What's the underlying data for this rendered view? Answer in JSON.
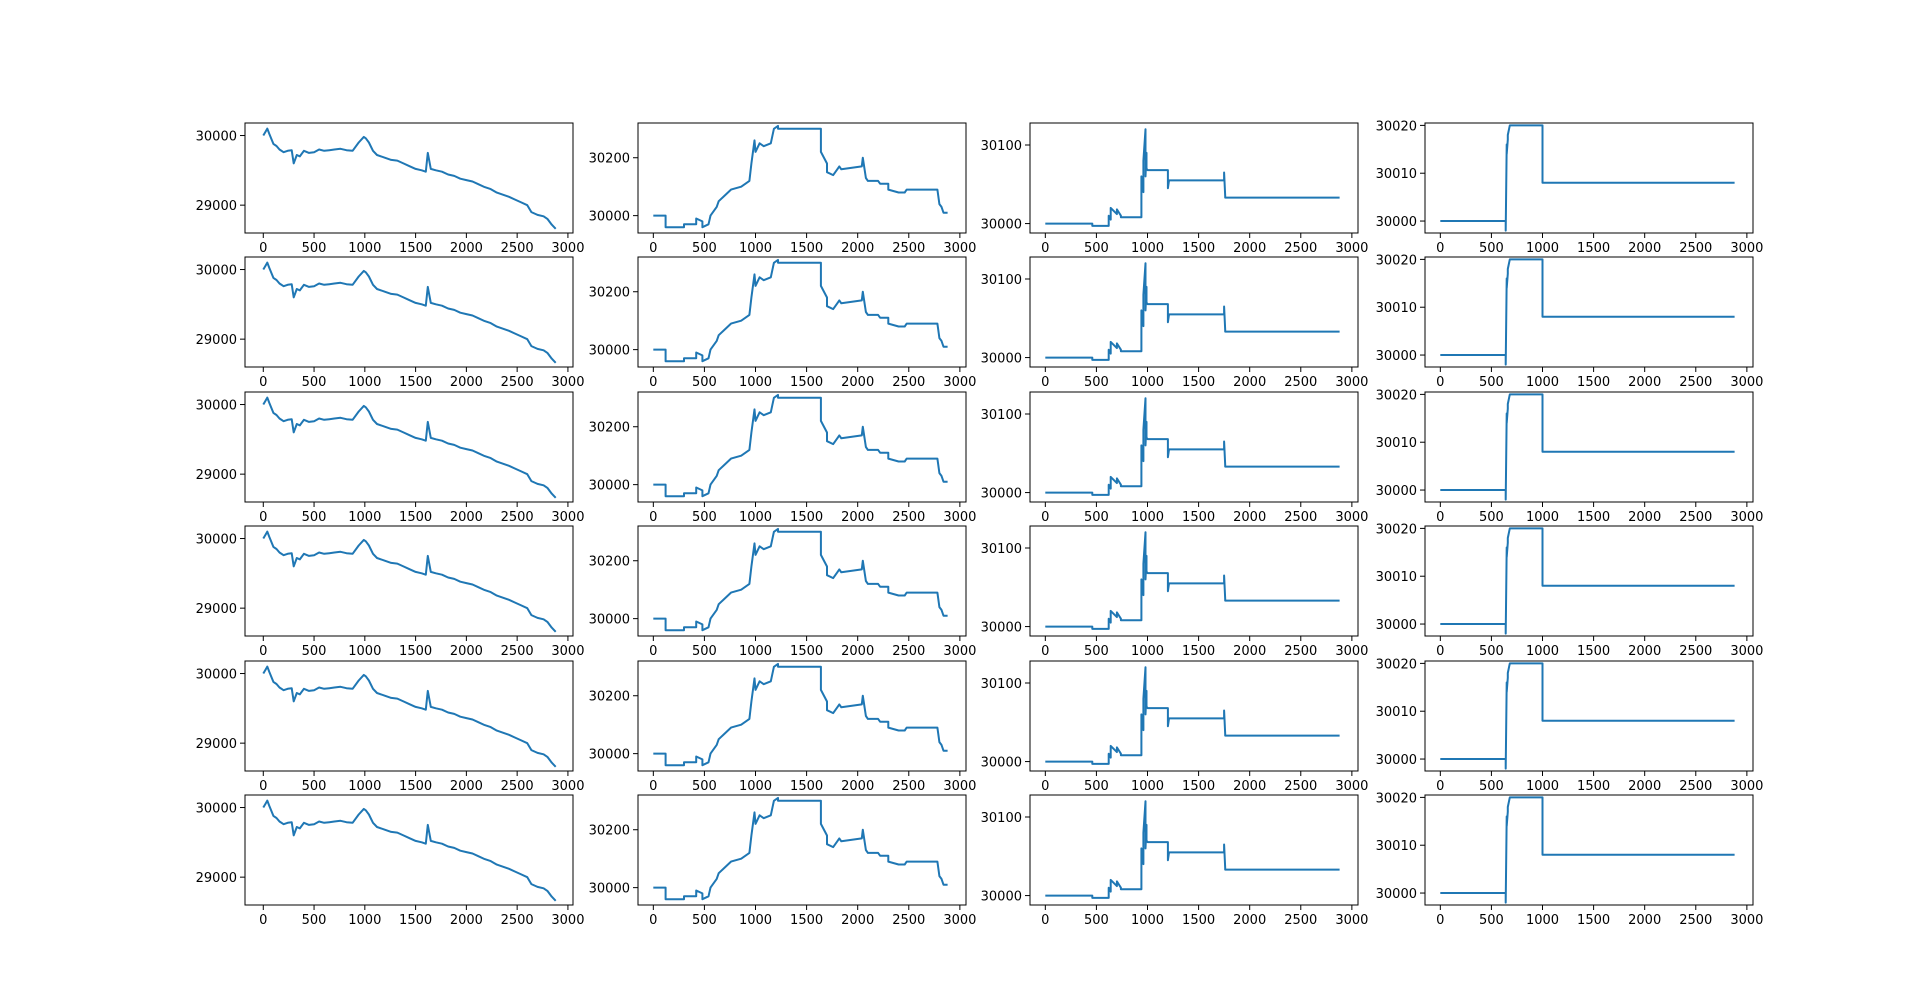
{
  "figure": {
    "rows": 6,
    "cols": 4,
    "line_color": "#1f77b4",
    "background": "#ffffff",
    "grid": false,
    "legend": false
  },
  "chart_data": [
    {
      "type": "line",
      "column": 1,
      "repeated_rows": 6,
      "xlim": [
        -180,
        3050
      ],
      "ylim": [
        28600,
        30180
      ],
      "xticks": [
        0,
        500,
        1000,
        1500,
        2000,
        2500,
        3000
      ],
      "yticks": [
        29000,
        30000
      ],
      "x": [
        0,
        20,
        40,
        60,
        80,
        100,
        130,
        160,
        200,
        240,
        280,
        300,
        330,
        360,
        400,
        450,
        500,
        550,
        600,
        650,
        700,
        760,
        820,
        880,
        940,
        990,
        1010,
        1040,
        1080,
        1120,
        1160,
        1200,
        1260,
        1320,
        1380,
        1440,
        1500,
        1560,
        1600,
        1620,
        1650,
        1700,
        1760,
        1820,
        1880,
        1940,
        2000,
        2060,
        2120,
        2180,
        2240,
        2300,
        2360,
        2420,
        2480,
        2540,
        2600,
        2640,
        2700,
        2760,
        2800,
        2840,
        2880
      ],
      "y": [
        30000,
        30050,
        30100,
        30020,
        29950,
        29880,
        29850,
        29800,
        29760,
        29780,
        29790,
        29600,
        29720,
        29700,
        29780,
        29750,
        29760,
        29800,
        29780,
        29790,
        29800,
        29810,
        29790,
        29780,
        29900,
        29980,
        29960,
        29900,
        29780,
        29720,
        29700,
        29680,
        29650,
        29640,
        29600,
        29560,
        29520,
        29500,
        29480,
        29750,
        29520,
        29500,
        29480,
        29440,
        29420,
        29380,
        29360,
        29340,
        29300,
        29260,
        29230,
        29180,
        29150,
        29120,
        29080,
        29040,
        29000,
        28900,
        28860,
        28840,
        28800,
        28720,
        28660
      ]
    },
    {
      "type": "line",
      "column": 2,
      "repeated_rows": 6,
      "xlim": [
        -150,
        3060
      ],
      "ylim": [
        29940,
        30320
      ],
      "xticks": [
        0,
        500,
        1000,
        1500,
        2000,
        2500,
        3000
      ],
      "yticks": [
        30000,
        30200
      ],
      "x": [
        0,
        120,
        120,
        300,
        300,
        420,
        420,
        480,
        480,
        540,
        560,
        620,
        640,
        700,
        760,
        860,
        900,
        940,
        960,
        990,
        1000,
        1040,
        1080,
        1150,
        1180,
        1220,
        1220,
        1640,
        1640,
        1700,
        1700,
        1760,
        1800,
        1820,
        1840,
        2040,
        2050,
        2080,
        2100,
        2200,
        2220,
        2300,
        2300,
        2400,
        2460,
        2480,
        2780,
        2800,
        2820,
        2840,
        2880
      ],
      "y": [
        30000,
        30000,
        29960,
        29960,
        29970,
        29970,
        29990,
        29980,
        29960,
        29970,
        30000,
        30030,
        30050,
        30070,
        30090,
        30100,
        30110,
        30120,
        30180,
        30260,
        30220,
        30250,
        30240,
        30250,
        30300,
        30310,
        30300,
        30300,
        30220,
        30180,
        30150,
        30140,
        30160,
        30170,
        30160,
        30170,
        30200,
        30130,
        30120,
        30120,
        30110,
        30110,
        30090,
        30080,
        30080,
        30090,
        30090,
        30040,
        30030,
        30010,
        30010
      ]
    },
    {
      "type": "line",
      "column": 3,
      "repeated_rows": 6,
      "xlim": [
        -150,
        3060
      ],
      "ylim": [
        29988,
        30128
      ],
      "xticks": [
        0,
        500,
        1000,
        1500,
        2000,
        2500,
        3000
      ],
      "yticks": [
        30000,
        30100
      ],
      "x": [
        0,
        460,
        460,
        620,
        620,
        640,
        640,
        700,
        700,
        740,
        740,
        940,
        940,
        960,
        960,
        980,
        980,
        990,
        990,
        1000,
        1000,
        1200,
        1200,
        1210,
        1210,
        1750,
        1750,
        1760,
        1760,
        2880
      ],
      "y": [
        30000,
        30000,
        29997,
        29997,
        30010,
        30005,
        30020,
        30012,
        30018,
        30010,
        30008,
        30008,
        30060,
        30040,
        30080,
        30120,
        30060,
        30090,
        30070,
        30068,
        30068,
        30068,
        30045,
        30055,
        30055,
        30055,
        30065,
        30035,
        30033,
        30033
      ]
    },
    {
      "type": "line",
      "column": 4,
      "repeated_rows": 6,
      "xlim": [
        -150,
        3060
      ],
      "ylim": [
        29997.5,
        30020.5
      ],
      "xticks": [
        0,
        500,
        1000,
        1500,
        2000,
        2500,
        3000
      ],
      "yticks": [
        30000,
        30010,
        30020
      ],
      "x": [
        0,
        640,
        640,
        650,
        650,
        660,
        660,
        680,
        680,
        1000,
        1000,
        2880
      ],
      "y": [
        30000,
        30000,
        29998,
        30016,
        30014,
        30017,
        30018,
        30020,
        30020,
        30020,
        30008,
        30008
      ]
    }
  ]
}
